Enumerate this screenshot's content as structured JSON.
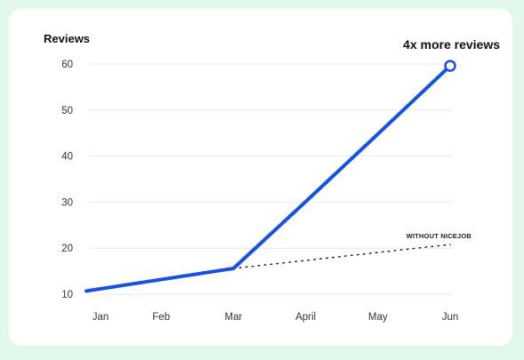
{
  "chart_data": {
    "type": "line",
    "ylabel": "Reviews",
    "categories": [
      "Jan",
      "Feb",
      "Mar",
      "April",
      "May",
      "Jun"
    ],
    "yticks": [
      10,
      20,
      30,
      40,
      50,
      60
    ],
    "ylim": [
      10,
      60
    ],
    "grid": true,
    "series": [
      {
        "values": [
          10.7,
          13.2,
          15.6,
          30.1,
          44.8,
          59.6
        ],
        "color": "#1552e0",
        "style": "solid"
      },
      {
        "name": "WITHOUT NICEJOB",
        "x": [
          "Mar",
          "Jun"
        ],
        "values": [
          15.6,
          20.8
        ],
        "color": "#222222",
        "style": "dotted"
      }
    ],
    "annotations": [
      {
        "text": "4x more reviews",
        "at": "Jun"
      }
    ]
  }
}
